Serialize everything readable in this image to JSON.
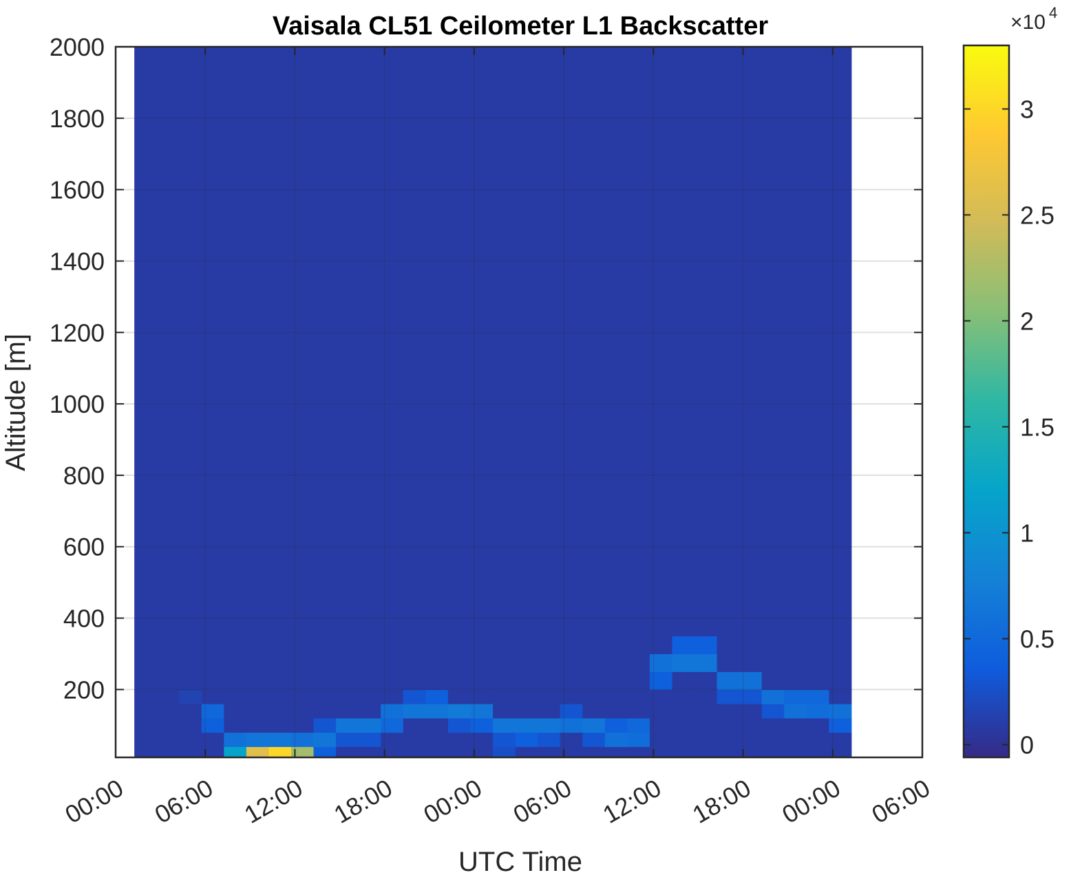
{
  "chart_data": {
    "type": "heatmap",
    "title": "Vaisala CL51 Ceilometer L1 Backscatter",
    "x_label": "UTC Time",
    "y_label": "Altitude [m]",
    "xlim": [
      0,
      54
    ],
    "xticks": [
      {
        "value": 0,
        "label": "00:00"
      },
      {
        "value": 6,
        "label": "06:00"
      },
      {
        "value": 12,
        "label": "12:00"
      },
      {
        "value": 18,
        "label": "18:00"
      },
      {
        "value": 24,
        "label": "00:00"
      },
      {
        "value": 30,
        "label": "06:00"
      },
      {
        "value": 36,
        "label": "12:00"
      },
      {
        "value": 42,
        "label": "18:00"
      },
      {
        "value": 48,
        "label": "00:00"
      },
      {
        "value": 54,
        "label": "06:00"
      }
    ],
    "ylim": [
      10,
      2000
    ],
    "yticks": [
      200,
      400,
      600,
      800,
      1000,
      1200,
      1400,
      1600,
      1800,
      2000
    ],
    "grid": true,
    "x_bins": [
      1.25,
      2.75,
      4.25,
      5.75,
      7.25,
      8.75,
      10.25,
      11.75,
      13.25,
      14.75,
      16.25,
      17.75,
      19.25,
      20.75,
      22.25,
      23.75,
      25.25,
      26.75,
      28.25,
      29.75,
      31.25,
      32.75,
      34.25,
      35.75,
      37.25,
      38.75,
      40.25,
      41.75,
      43.25,
      44.75,
      46.25,
      47.75,
      49.25
    ],
    "y_bins": [
      10,
      40,
      80,
      120,
      160,
      200,
      250,
      300,
      350,
      400,
      2000
    ],
    "values": [
      [
        800,
        800,
        800,
        800,
        800,
        800,
        800,
        800,
        800,
        800
      ],
      [
        800,
        800,
        800,
        800,
        800,
        800,
        800,
        800,
        800,
        800
      ],
      [
        800,
        800,
        800,
        800,
        1500,
        800,
        800,
        800,
        800,
        800
      ],
      [
        800,
        800,
        4000,
        5000,
        800,
        800,
        800,
        800,
        800,
        800
      ],
      [
        12000,
        6000,
        800,
        800,
        800,
        800,
        800,
        800,
        800,
        800
      ],
      [
        26000,
        6500,
        800,
        800,
        800,
        800,
        800,
        800,
        800,
        800
      ],
      [
        30000,
        6500,
        800,
        800,
        800,
        800,
        800,
        800,
        800,
        800
      ],
      [
        22000,
        6000,
        800,
        800,
        800,
        800,
        800,
        800,
        800,
        800
      ],
      [
        4000,
        6500,
        3000,
        800,
        800,
        800,
        800,
        800,
        800,
        800
      ],
      [
        800,
        3000,
        6500,
        800,
        800,
        800,
        800,
        800,
        800,
        800
      ],
      [
        800,
        3000,
        6500,
        800,
        800,
        800,
        800,
        800,
        800,
        800
      ],
      [
        800,
        800,
        5000,
        6000,
        800,
        800,
        800,
        800,
        800,
        800
      ],
      [
        800,
        800,
        800,
        6500,
        3000,
        800,
        800,
        800,
        800,
        800
      ],
      [
        800,
        800,
        800,
        6500,
        4000,
        800,
        800,
        800,
        800,
        800
      ],
      [
        800,
        800,
        3000,
        7000,
        800,
        800,
        800,
        800,
        800,
        800
      ],
      [
        800,
        800,
        4000,
        6500,
        800,
        800,
        800,
        800,
        800,
        800
      ],
      [
        2500,
        3000,
        6500,
        800,
        800,
        800,
        800,
        800,
        800,
        800
      ],
      [
        800,
        4000,
        6500,
        800,
        800,
        800,
        800,
        800,
        800,
        800
      ],
      [
        800,
        3000,
        6500,
        800,
        800,
        800,
        800,
        800,
        800,
        800
      ],
      [
        800,
        800,
        6000,
        3000,
        800,
        800,
        800,
        800,
        800,
        800
      ],
      [
        800,
        3000,
        6500,
        800,
        800,
        800,
        800,
        800,
        800,
        800
      ],
      [
        800,
        6000,
        4000,
        800,
        800,
        800,
        800,
        800,
        800,
        800
      ],
      [
        800,
        5500,
        5000,
        800,
        800,
        800,
        800,
        800,
        800,
        800
      ],
      [
        800,
        800,
        800,
        800,
        800,
        4000,
        6000,
        800,
        800,
        800
      ],
      [
        800,
        800,
        800,
        800,
        800,
        800,
        6500,
        4000,
        800,
        800
      ],
      [
        800,
        800,
        800,
        800,
        800,
        800,
        6500,
        4000,
        800,
        800
      ],
      [
        800,
        800,
        800,
        800,
        3000,
        6000,
        800,
        800,
        800,
        800
      ],
      [
        800,
        800,
        800,
        800,
        3000,
        6000,
        800,
        800,
        800,
        800
      ],
      [
        800,
        800,
        800,
        3000,
        6000,
        800,
        800,
        800,
        800,
        800
      ],
      [
        800,
        800,
        800,
        6000,
        5000,
        800,
        800,
        800,
        800,
        800
      ],
      [
        800,
        800,
        800,
        5500,
        5000,
        800,
        800,
        800,
        800,
        800
      ],
      [
        800,
        800,
        4000,
        6000,
        800,
        800,
        800,
        800,
        800,
        800
      ]
    ],
    "clim": [
      -600,
      33000
    ],
    "cticks": [
      {
        "value": 0,
        "label": "0"
      },
      {
        "value": 5000,
        "label": "0.5"
      },
      {
        "value": 10000,
        "label": "1"
      },
      {
        "value": 15000,
        "label": "1.5"
      },
      {
        "value": 20000,
        "label": "2"
      },
      {
        "value": 25000,
        "label": "2.5"
      },
      {
        "value": 30000,
        "label": "3"
      }
    ],
    "colorbar_multiplier": "×10",
    "colorbar_exponent": 4
  }
}
